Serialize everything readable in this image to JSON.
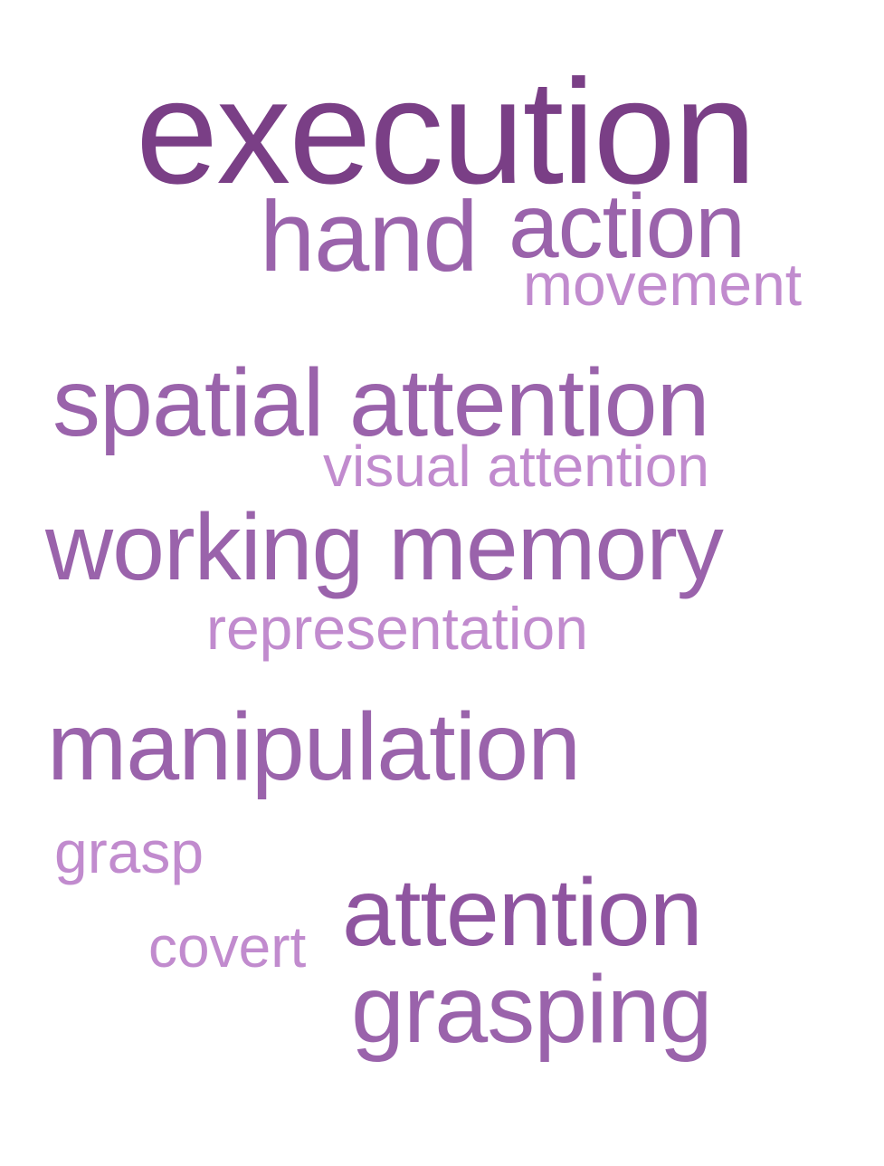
{
  "colors": {
    "background": "#ffffff",
    "darkest": "#7a3f86",
    "dark": "#8f55a0",
    "medium": "#9a63ab",
    "light": "#c18bce"
  },
  "words": {
    "execution": {
      "text": "execution",
      "color": "#7a3f86"
    },
    "hand": {
      "text": "hand",
      "color": "#9a63ab"
    },
    "action": {
      "text": "action",
      "color": "#9a63ab"
    },
    "movement": {
      "text": "movement",
      "color": "#c18bce"
    },
    "spatial_attention": {
      "text": "spatial attention",
      "color": "#9a63ab"
    },
    "visual_attention": {
      "text": "visual attention",
      "color": "#c18bce"
    },
    "working_memory": {
      "text": "working memory",
      "color": "#9a63ab"
    },
    "representation": {
      "text": "representation",
      "color": "#c18bce"
    },
    "manipulation": {
      "text": "manipulation",
      "color": "#9a63ab"
    },
    "grasp": {
      "text": "grasp",
      "color": "#c18bce"
    },
    "attention": {
      "text": "attention",
      "color": "#8f55a0"
    },
    "covert": {
      "text": "covert",
      "color": "#c18bce"
    },
    "grasping": {
      "text": "grasping",
      "color": "#9a63ab"
    }
  }
}
